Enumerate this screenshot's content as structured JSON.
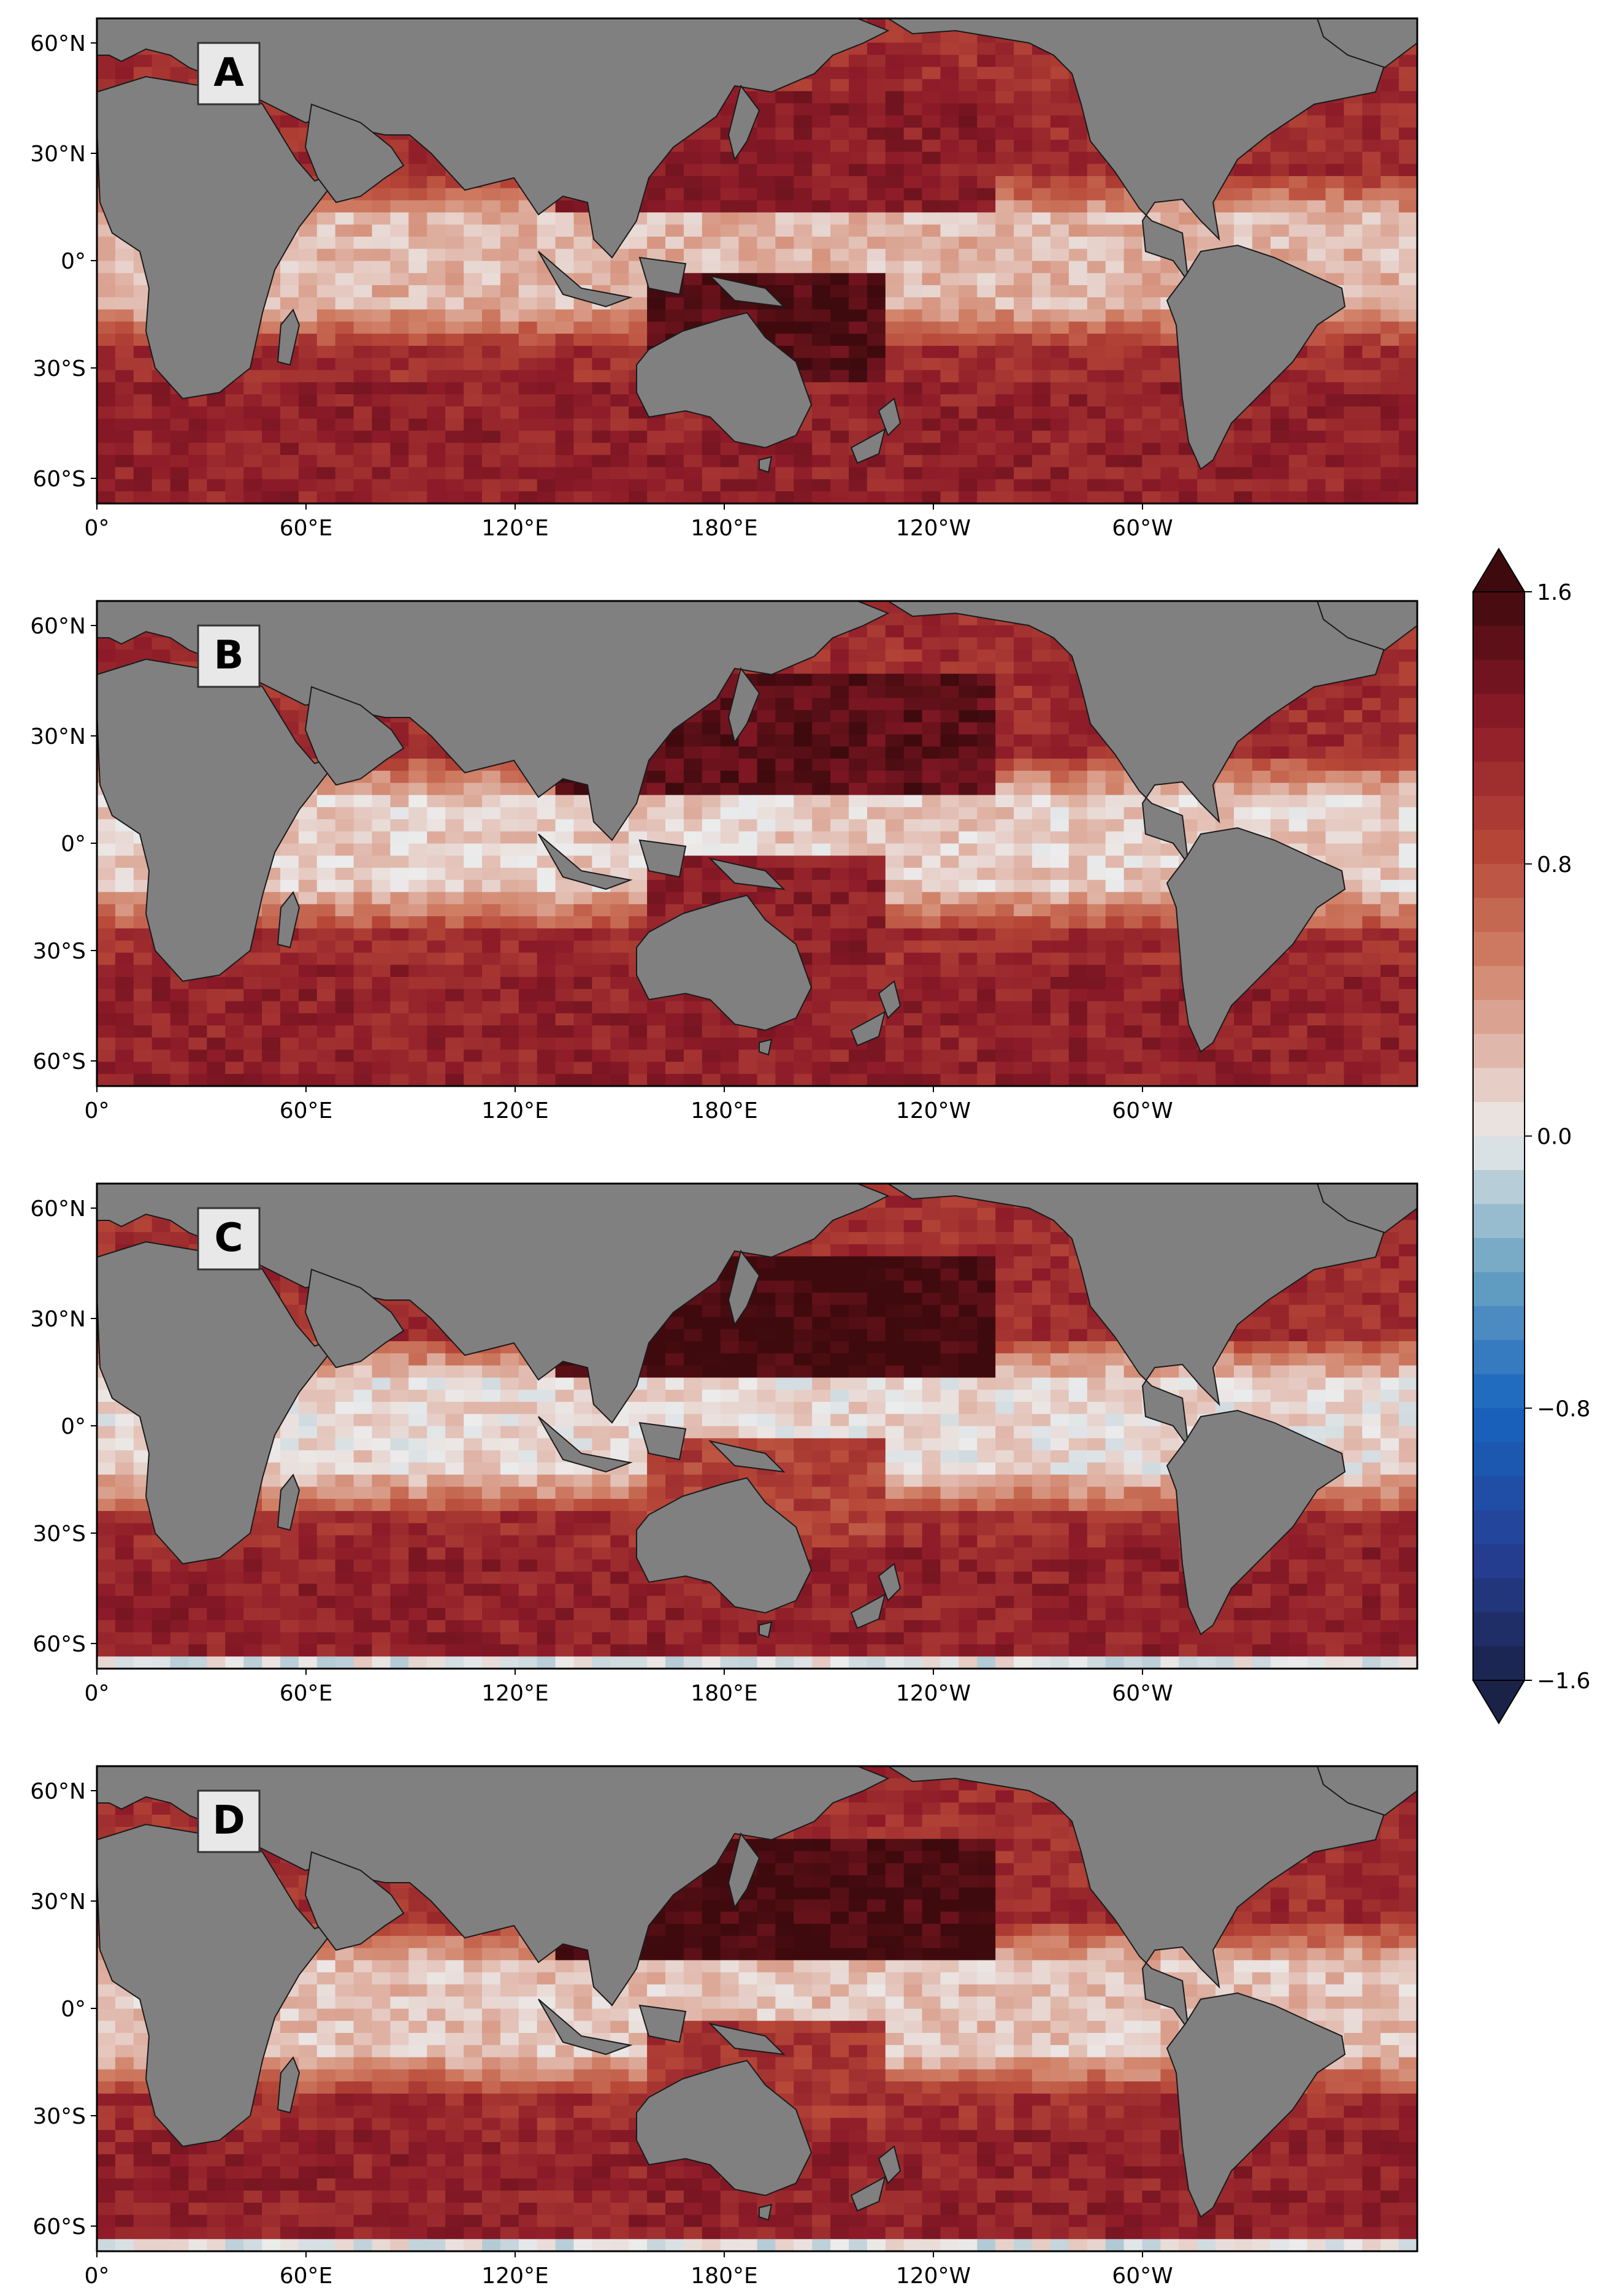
{
  "panels": [
    {
      "label": "A",
      "tropical_band_level": 0.25,
      "north_pacific_level": 1.2,
      "south_pacific_level": 1.5,
      "southern_edge_white": false
    },
    {
      "label": "B",
      "tropical_band_level": 0.15,
      "north_pacific_level": 1.45,
      "south_pacific_level": 1.2,
      "southern_edge_white": false
    },
    {
      "label": "C",
      "tropical_band_level": 0.1,
      "north_pacific_level": 1.6,
      "south_pacific_level": 0.9,
      "southern_edge_white": true
    },
    {
      "label": "D",
      "tropical_band_level": 0.2,
      "north_pacific_level": 1.55,
      "south_pacific_level": 1.0,
      "southern_edge_white": true
    }
  ],
  "x_ticks": [
    "0°",
    "60°E",
    "120°E",
    "180°E",
    "120°W",
    "60°W"
  ],
  "y_ticks": [
    "60°N",
    "30°N",
    "0°",
    "30°S",
    "60°S"
  ],
  "colorbar": {
    "ticks": [
      "1.6",
      "0.8",
      "0.0",
      "−0.8",
      "−1.6"
    ],
    "min": -1.6,
    "max": 1.6,
    "extend": "both"
  },
  "colors": {
    "land": "#808080",
    "max_dark_red": "#3f0a0e",
    "min_dark_blue": "#1a2248",
    "neutral": "#ececec"
  }
}
